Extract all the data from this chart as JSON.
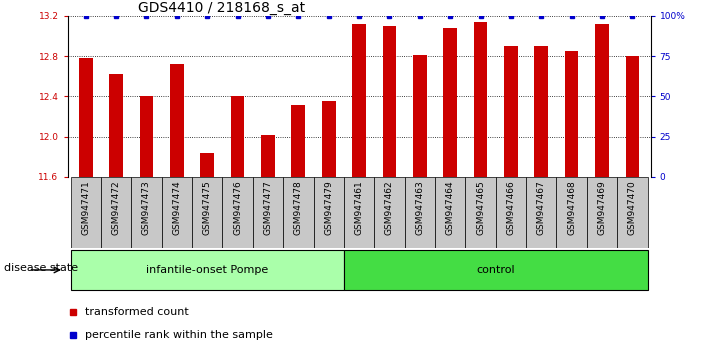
{
  "title": "GDS4410 / 218168_s_at",
  "samples": [
    "GSM947471",
    "GSM947472",
    "GSM947473",
    "GSM947474",
    "GSM947475",
    "GSM947476",
    "GSM947477",
    "GSM947478",
    "GSM947479",
    "GSM947461",
    "GSM947462",
    "GSM947463",
    "GSM947464",
    "GSM947465",
    "GSM947466",
    "GSM947467",
    "GSM947468",
    "GSM947469",
    "GSM947470"
  ],
  "red_values": [
    12.78,
    12.62,
    12.4,
    12.72,
    11.84,
    12.4,
    12.02,
    12.32,
    12.35,
    13.12,
    13.1,
    12.81,
    13.08,
    13.14,
    12.9,
    12.9,
    12.85,
    13.12,
    12.8
  ],
  "group_labels": [
    "infantile-onset Pompe",
    "control"
  ],
  "group_counts": [
    9,
    10
  ],
  "ylim_left": [
    11.6,
    13.2
  ],
  "ylim_right": [
    0,
    100
  ],
  "yticks_left": [
    11.6,
    12.0,
    12.4,
    12.8,
    13.2
  ],
  "yticks_right": [
    0,
    25,
    50,
    75,
    100
  ],
  "bar_color": "#cc0000",
  "dot_color": "#0000cc",
  "group1_color": "#aaffaa",
  "group2_color": "#44dd44",
  "tick_box_color": "#c8c8c8",
  "legend_items": [
    "transformed count",
    "percentile rank within the sample"
  ],
  "title_fontsize": 10,
  "tick_fontsize": 6.5,
  "label_fontsize": 8,
  "group_fontsize": 8,
  "bar_width": 0.45
}
